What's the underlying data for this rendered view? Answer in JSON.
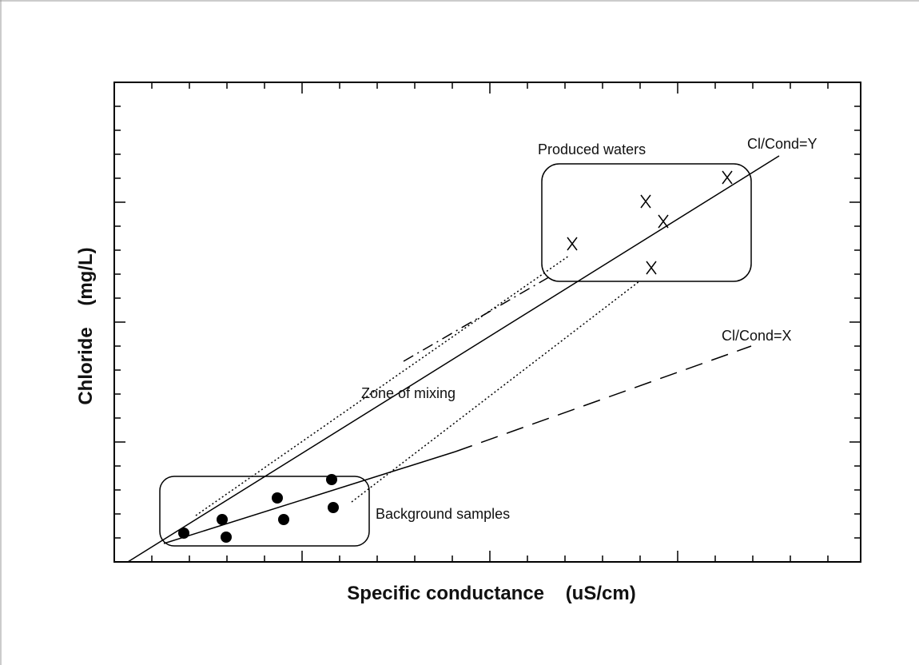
{
  "labels": {
    "produced": "Produced waters",
    "cond_y": "Cl/Cond=Y",
    "cond_x": "Cl/Cond=X",
    "mixing": "Zone of mixing",
    "background": "Background samples"
  },
  "axes": {
    "x_title": "Specific conductance    (uS/cm)",
    "y_title": "Chloride    (mg/L)"
  }
}
